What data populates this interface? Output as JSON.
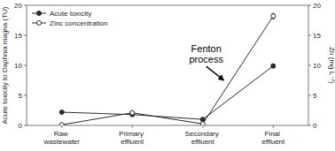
{
  "chart_data": {
    "type": "line",
    "categories": [
      "Raw wastewater",
      "Primary effluent",
      "Secondary effluent",
      "Final effluent"
    ],
    "series": [
      {
        "name": "Acute toxicity",
        "color": "#2a2a2a",
        "marker": "circle",
        "axis": "y",
        "values": [
          2.2,
          1.8,
          1.0,
          9.9
        ],
        "errors": [
          0.12,
          0.12,
          0.08,
          0.3
        ]
      },
      {
        "name": "Zinc concentration",
        "color": "#2a2a2a",
        "marker": "circle-open",
        "axis": "y2",
        "values": [
          0.1,
          2.1,
          0.25,
          18.2
        ],
        "errors": [
          0.04,
          0.1,
          0.04,
          0.45
        ]
      }
    ],
    "y_label": "Acute toxicity to Daphnia magna (TU)",
    "y2_label": "Zn (mg L⁻¹)",
    "ylim": [
      0,
      20
    ],
    "yticks": [
      0,
      5,
      10,
      15,
      20
    ],
    "y2lim": [
      0,
      20
    ],
    "y2ticks": [
      0,
      5,
      10,
      15,
      20
    ],
    "legend": "upper left",
    "grid": false,
    "annotations": [
      {
        "text": "Fenton\nprocess",
        "x": 2.05,
        "y": 13.5,
        "arrow_to": [
          2.3,
          7.5
        ]
      }
    ]
  }
}
